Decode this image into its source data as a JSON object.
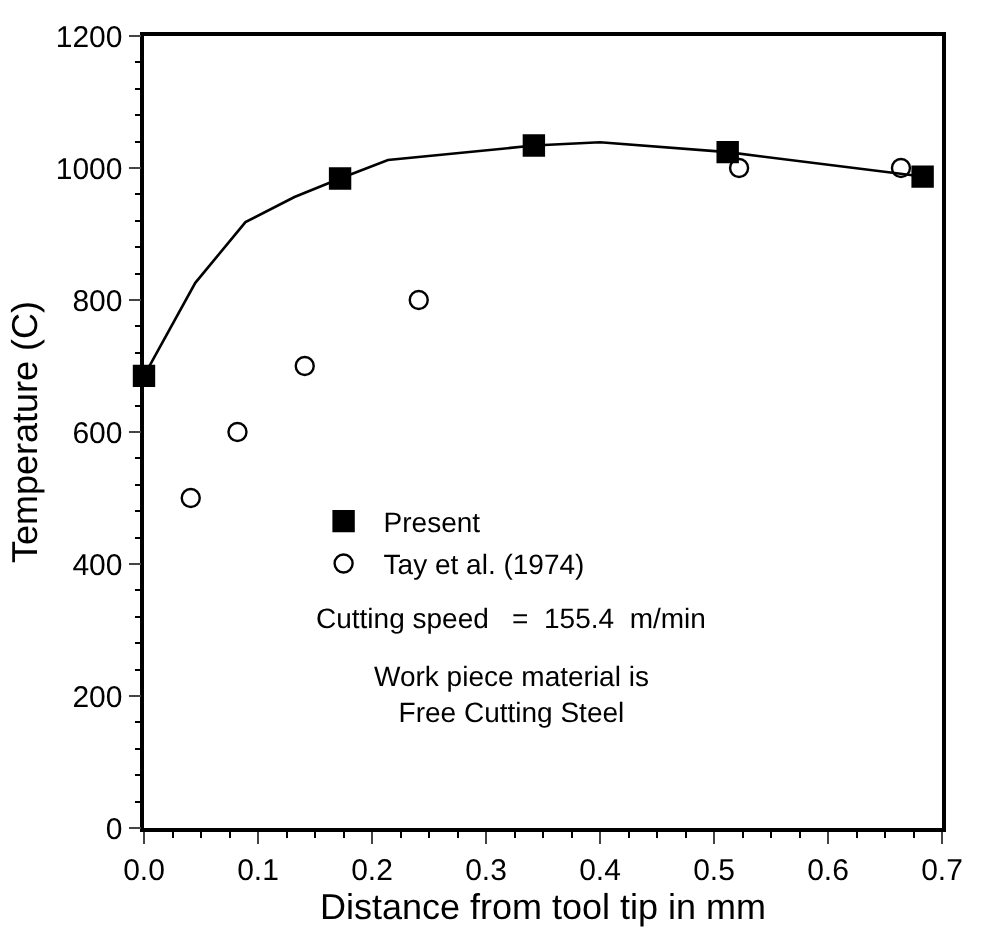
{
  "chart_data": {
    "type": "scatter",
    "xlabel": "Distance from tool tip in mm",
    "ylabel": "Temperature (C)",
    "xlim": [
      0,
      0.7
    ],
    "xticks": [
      {
        "value": 0,
        "label": "0.0"
      },
      0.1,
      0.2,
      0.3,
      0.4,
      0.5,
      0.6,
      0.7
    ],
    "ylim": [
      0,
      1200
    ],
    "yticks": [
      0,
      200,
      400,
      600,
      800,
      1000,
      1200
    ],
    "legend": "center",
    "series": [
      {
        "type": "line",
        "color": "#000000",
        "marker": "none",
        "line_style": "solid",
        "x": [
          0,
          0.045,
          0.089,
          0.132,
          0.172,
          0.214,
          0.342,
          0.4,
          0.512,
          0.683
        ],
        "values": [
          685,
          826,
          918,
          956,
          984,
          1012,
          1034,
          1039,
          1024,
          987
        ]
      },
      {
        "name": "Present",
        "color": "#000000",
        "marker": "square",
        "x": [
          0,
          0.172,
          0.342,
          0.512,
          0.683
        ],
        "values": [
          685,
          984,
          1034,
          1024,
          987
        ]
      },
      {
        "name": "Tay et al. (1974)",
        "color": "#000000",
        "marker": "circle-open",
        "x": [
          0.041,
          0.082,
          0.141,
          0.241,
          0.522,
          0.664
        ],
        "values": [
          500,
          600,
          700,
          800,
          1000,
          1000
        ]
      }
    ],
    "annotations": [
      "Cutting speed   =  155.4  m/min",
      "Work piece material is\nFree Cutting Steel"
    ]
  }
}
